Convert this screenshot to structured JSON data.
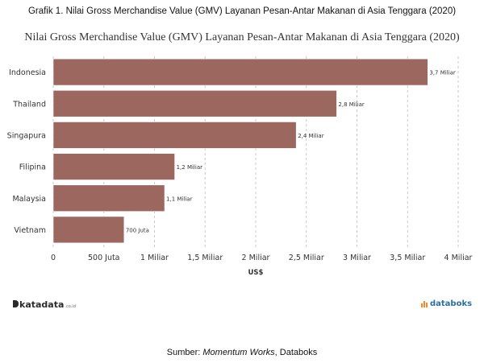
{
  "caption": "Grafik 1. Nilai Gross Merchandise Value (GMV) Layanan Pesan-Antar Makanan di Asia Tenggara (2020)",
  "chart_data": {
    "type": "bar",
    "orientation": "horizontal",
    "title": "Nilai Gross Merchandise Value (GMV) Layanan Pesan-Antar Makanan di Asia Tenggara (2020)",
    "xlabel": "US$",
    "ylabel": "",
    "categories": [
      "Indonesia",
      "Thailand",
      "Singapura",
      "Filipina",
      "Malaysia",
      "Vietnam"
    ],
    "values": [
      3.7,
      2.8,
      2.4,
      1.2,
      1.1,
      0.7
    ],
    "data_labels": [
      "3,7 Miliar",
      "2,8 Miliar",
      "2,4 Miliar",
      "1,2 Miliar",
      "1,1 Miliar",
      "700 Juta"
    ],
    "xlim": [
      0,
      4
    ],
    "x_ticks": [
      0,
      0.5,
      1,
      1.5,
      2,
      2.5,
      3,
      3.5,
      4
    ],
    "x_tick_labels": [
      "0",
      "500 Juta",
      "1 Miliar",
      "1,5 Miliar",
      "2 Miliar",
      "2,5 Miliar",
      "3 Miliar",
      "3,5 Miliar",
      "4 Miliar"
    ],
    "grid": "vertical dashed",
    "bar_color": "#9b675e",
    "bar_edge_color": "#ffffff"
  },
  "logos": {
    "left_name": "katadata",
    "left_suffix": ".co.id",
    "right_name": "databoks"
  },
  "source": {
    "prefix": "Sumber: ",
    "emphasis": "Momentum Works",
    "suffix": ", Databoks"
  }
}
